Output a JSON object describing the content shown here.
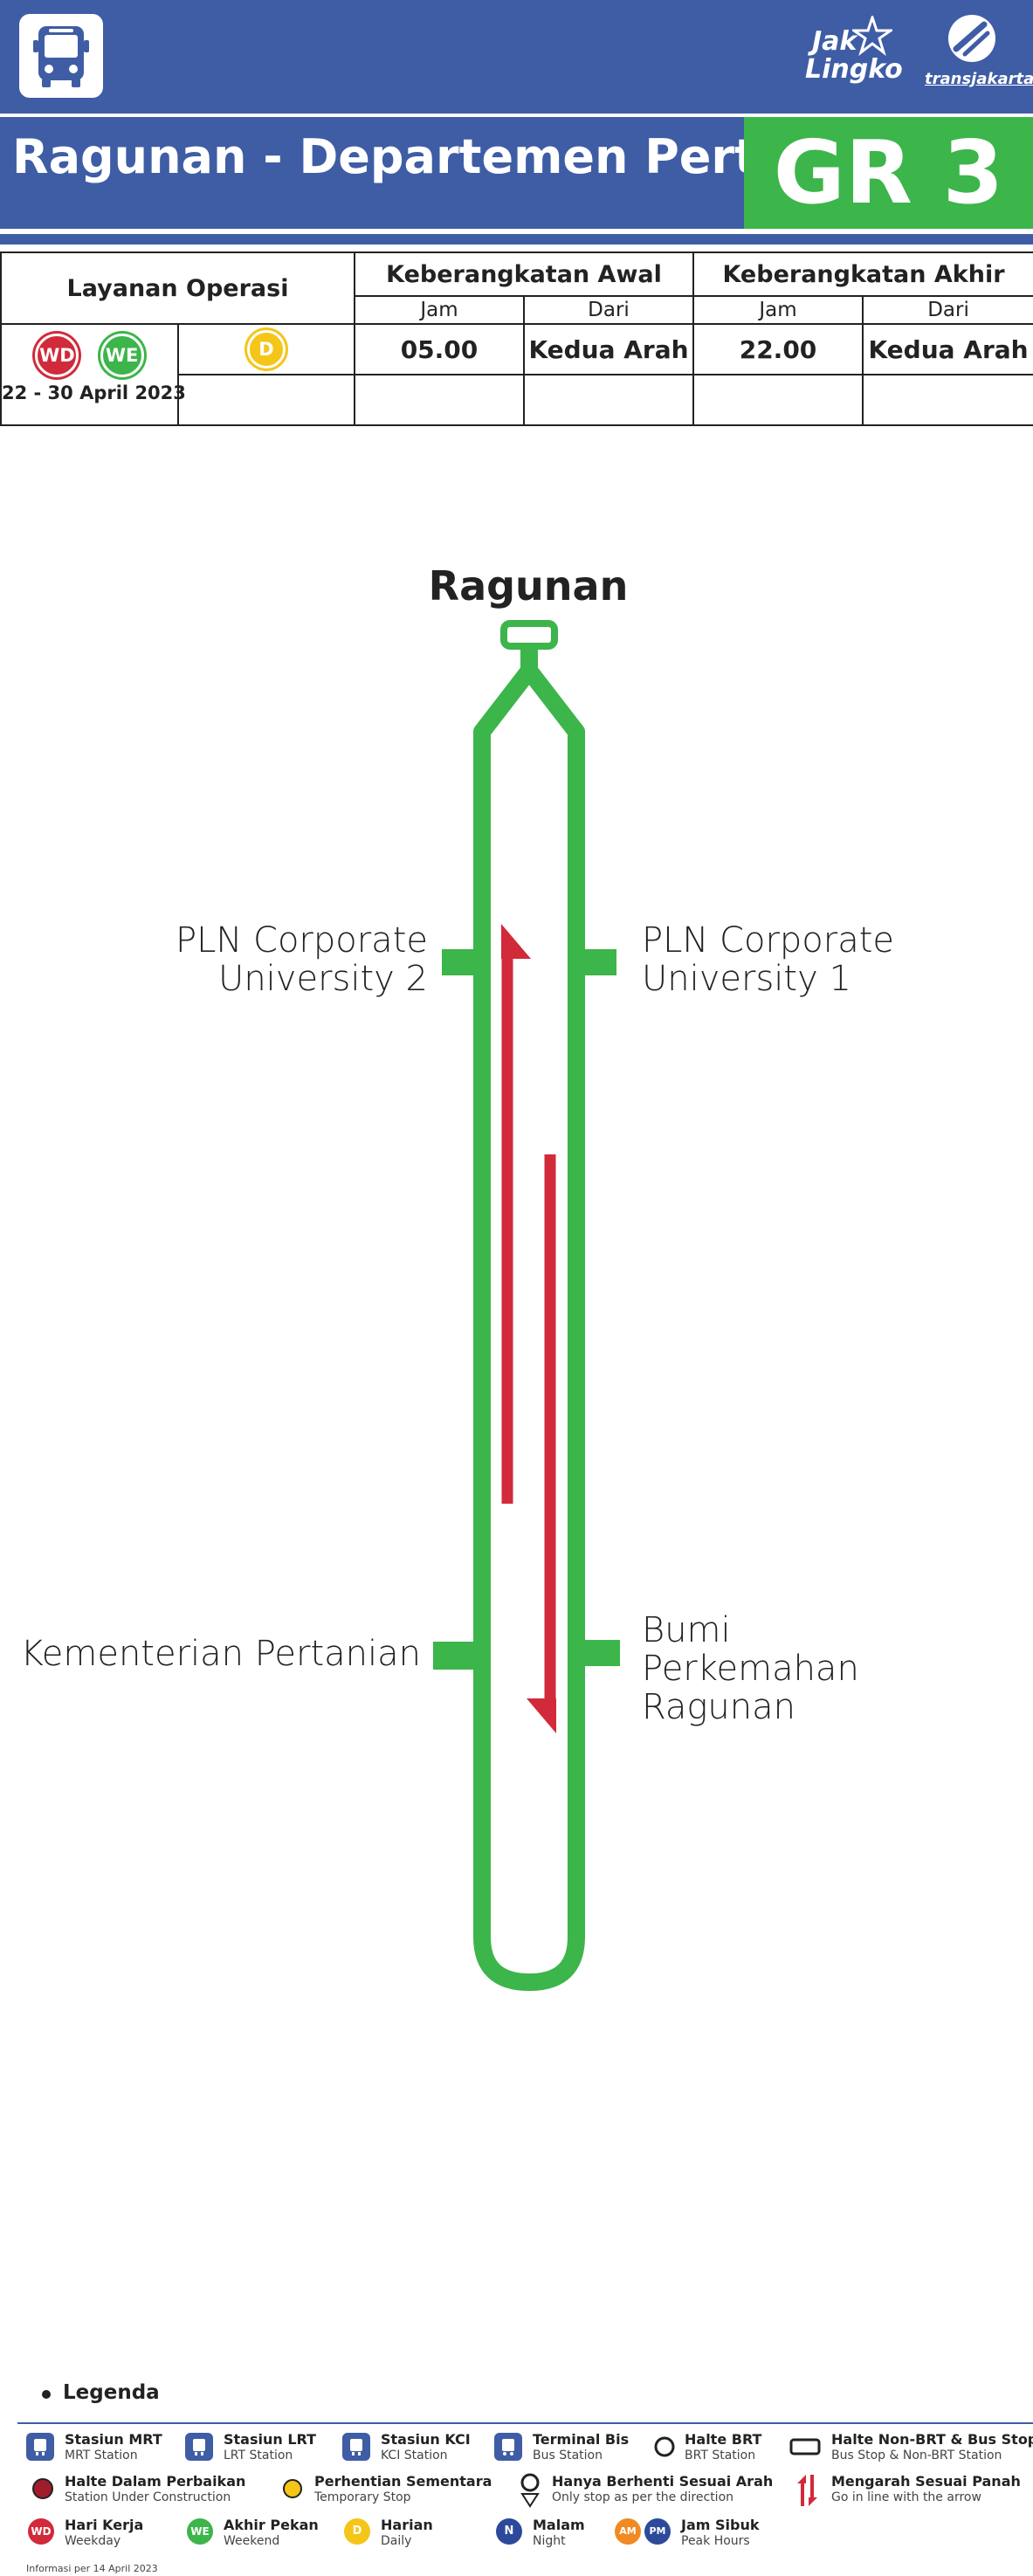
{
  "header": {
    "logo_jaklingko_line1": "Jak",
    "logo_jaklingko_line2": "Lingko",
    "logo_transjakarta": "transjakarta",
    "colors": {
      "header_blue": "#3f5da5",
      "route_green": "#3cb54a",
      "direction_red": "#d12a3a"
    }
  },
  "route": {
    "title": "Ragunan - Departemen Pertanian",
    "code": "GR 3"
  },
  "schedule": {
    "service_header": "Layanan Operasi",
    "first_header": "Keberangkatan Awal",
    "last_header": "Keberangkatan Akhir",
    "jam": "Jam",
    "dari": "Dari",
    "badge_wd": "WD",
    "badge_we": "WE",
    "badge_d": "D",
    "date_range": "22 - 30 April 2023",
    "first_time": "05.00",
    "first_from": "Kedua Arah",
    "last_time": "22.00",
    "last_from": "Kedua Arah"
  },
  "map": {
    "terminus": "Ragunan",
    "stops": {
      "pln2_line1": "PLN Corporate",
      "pln2_line2": "University 2",
      "pln1_line1": "PLN Corporate",
      "pln1_line2": "University 1",
      "kementerian": "Kementerian Pertanian",
      "bumi_line1": "Bumi Perkemahan",
      "bumi_line2": "Ragunan"
    }
  },
  "legend": {
    "title": "Legenda",
    "items": [
      {
        "main": "Stasiun MRT",
        "sub": "MRT Station",
        "icon": "mrt-station-icon"
      },
      {
        "main": "Stasiun LRT",
        "sub": "LRT Station",
        "icon": "lrt-station-icon"
      },
      {
        "main": "Stasiun KCI",
        "sub": "KCI Station",
        "icon": "kci-station-icon"
      },
      {
        "main": "Terminal Bis",
        "sub": "Bus Station",
        "icon": "bus-terminal-icon"
      },
      {
        "main": "Halte BRT",
        "sub": "BRT Station",
        "icon": "brt-stop-icon"
      },
      {
        "main": "Halte Non-BRT & Bus Stop",
        "sub": "Bus Stop & Non-BRT Station",
        "icon": "bus-stop-icon"
      },
      {
        "main": "Halte Dalam Perbaikan",
        "sub": "Station Under Construction",
        "icon": "under-construction-icon"
      },
      {
        "main": "Perhentian Sementara",
        "sub": "Temporary Stop",
        "icon": "temporary-stop-icon"
      },
      {
        "main": "Hanya Berhenti Sesuai Arah",
        "sub": "Only stop as per the direction",
        "icon": "direction-stop-icon"
      },
      {
        "main": "Mengarah Sesuai Panah",
        "sub": "Go in line with the arrow",
        "icon": "direction-arrow-icon"
      },
      {
        "main": "Hari Kerja",
        "sub": "Weekday",
        "icon": "weekday-badge-icon",
        "badge": "WD"
      },
      {
        "main": "Akhir Pekan",
        "sub": "Weekend",
        "icon": "weekend-badge-icon",
        "badge": "WE"
      },
      {
        "main": "Harian",
        "sub": "Daily",
        "icon": "daily-badge-icon",
        "badge": "D"
      },
      {
        "main": "Malam",
        "sub": "Night",
        "icon": "night-badge-icon",
        "badge": "N"
      },
      {
        "main": "Jam Sibuk",
        "sub": "Peak Hours",
        "icon": "peak-hours-badge-icon",
        "badge_am": "AM",
        "badge_pm": "PM"
      }
    ]
  },
  "footnote": "Informasi per 14 April 2023"
}
